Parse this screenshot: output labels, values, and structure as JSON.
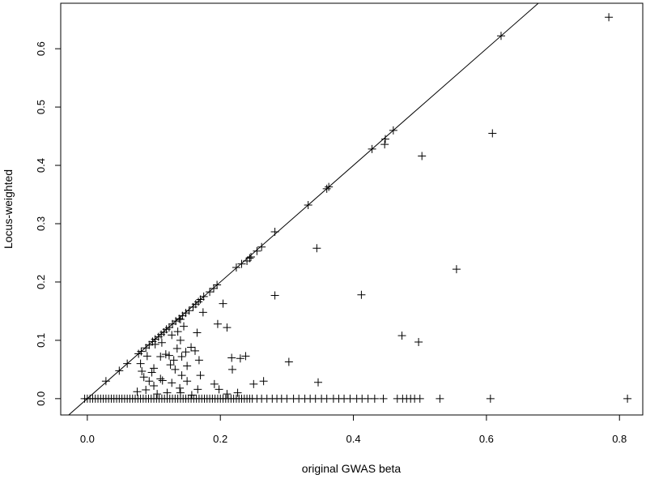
{
  "chart_data": {
    "type": "scatter",
    "marker": "plus",
    "xlabel": "original GWAS beta",
    "ylabel": "Locus-weighted",
    "xlim": [
      -0.04,
      0.835
    ],
    "ylim": [
      -0.028,
      0.678
    ],
    "x_ticks": [
      0.0,
      0.2,
      0.4,
      0.6,
      0.8
    ],
    "x_tick_labels": [
      "0.0",
      "0.2",
      "0.4",
      "0.6",
      "0.8"
    ],
    "y_ticks": [
      0.0,
      0.1,
      0.2,
      0.3,
      0.4,
      0.5,
      0.6
    ],
    "y_tick_labels": [
      "0.0",
      "0.1",
      "0.2",
      "0.3",
      "0.4",
      "0.5",
      "0.6"
    ],
    "grid": false,
    "reference_line": {
      "type": "identity",
      "slope": 1,
      "intercept": 0
    },
    "series": [
      {
        "points": [
          [
            0.784,
            0.654
          ],
          [
            0.622,
            0.622
          ],
          [
            0.609,
            0.455
          ],
          [
            0.46,
            0.46
          ],
          [
            0.448,
            0.445
          ],
          [
            0.447,
            0.436
          ],
          [
            0.428,
            0.428
          ],
          [
            0.503,
            0.416
          ],
          [
            0.363,
            0.363
          ],
          [
            0.36,
            0.36
          ],
          [
            0.332,
            0.332
          ],
          [
            0.282,
            0.286
          ],
          [
            0.345,
            0.258
          ],
          [
            0.262,
            0.26
          ],
          [
            0.255,
            0.253
          ],
          [
            0.246,
            0.243
          ],
          [
            0.244,
            0.241
          ],
          [
            0.24,
            0.236
          ],
          [
            0.232,
            0.231
          ],
          [
            0.224,
            0.225
          ],
          [
            0.555,
            0.222
          ],
          [
            0.195,
            0.195
          ],
          [
            0.19,
            0.189
          ],
          [
            0.184,
            0.183
          ],
          [
            0.175,
            0.175
          ],
          [
            0.17,
            0.17
          ],
          [
            0.167,
            0.166
          ],
          [
            0.163,
            0.162
          ],
          [
            0.159,
            0.157
          ],
          [
            0.153,
            0.151
          ],
          [
            0.148,
            0.147
          ],
          [
            0.143,
            0.142
          ],
          [
            0.138,
            0.137
          ],
          [
            0.133,
            0.133
          ],
          [
            0.128,
            0.128
          ],
          [
            0.123,
            0.122
          ],
          [
            0.119,
            0.119
          ],
          [
            0.115,
            0.114
          ],
          [
            0.111,
            0.11
          ],
          [
            0.107,
            0.106
          ],
          [
            0.102,
            0.102
          ],
          [
            0.098,
            0.098
          ],
          [
            0.093,
            0.092
          ],
          [
            0.088,
            0.087
          ],
          [
            0.081,
            0.081
          ],
          [
            0.077,
            0.077
          ],
          [
            0.06,
            0.06
          ],
          [
            0.048,
            0.048
          ],
          [
            0.028,
            0.03
          ],
          [
            0.204,
            0.163
          ],
          [
            0.282,
            0.177
          ],
          [
            0.412,
            0.178
          ],
          [
            0.174,
            0.148
          ],
          [
            0.196,
            0.128
          ],
          [
            0.21,
            0.122
          ],
          [
            0.14,
            0.136
          ],
          [
            0.145,
            0.124
          ],
          [
            0.136,
            0.115
          ],
          [
            0.165,
            0.113
          ],
          [
            0.127,
            0.109
          ],
          [
            0.473,
            0.108
          ],
          [
            0.14,
            0.1
          ],
          [
            0.498,
            0.097
          ],
          [
            0.112,
            0.096
          ],
          [
            0.102,
            0.093
          ],
          [
            0.156,
            0.088
          ],
          [
            0.135,
            0.086
          ],
          [
            0.148,
            0.08
          ],
          [
            0.162,
            0.082
          ],
          [
            0.118,
            0.076
          ],
          [
            0.123,
            0.074
          ],
          [
            0.09,
            0.073
          ],
          [
            0.142,
            0.072
          ],
          [
            0.11,
            0.072
          ],
          [
            0.217,
            0.07
          ],
          [
            0.23,
            0.069
          ],
          [
            0.238,
            0.073
          ],
          [
            0.13,
            0.066
          ],
          [
            0.168,
            0.066
          ],
          [
            0.08,
            0.06
          ],
          [
            0.303,
            0.063
          ],
          [
            0.125,
            0.058
          ],
          [
            0.15,
            0.056
          ],
          [
            0.1,
            0.052
          ],
          [
            0.132,
            0.05
          ],
          [
            0.218,
            0.05
          ],
          [
            0.082,
            0.047
          ],
          [
            0.097,
            0.045
          ],
          [
            0.142,
            0.04
          ],
          [
            0.17,
            0.04
          ],
          [
            0.085,
            0.037
          ],
          [
            0.11,
            0.034
          ],
          [
            0.113,
            0.031
          ],
          [
            0.093,
            0.03
          ],
          [
            0.127,
            0.027
          ],
          [
            0.15,
            0.03
          ],
          [
            0.191,
            0.025
          ],
          [
            0.25,
            0.025
          ],
          [
            0.265,
            0.03
          ],
          [
            0.347,
            0.028
          ],
          [
            0.1,
            0.022
          ],
          [
            0.139,
            0.018
          ],
          [
            0.166,
            0.016
          ],
          [
            0.088,
            0.015
          ],
          [
            0.075,
            0.012
          ],
          [
            0.105,
            0.008
          ],
          [
            0.12,
            0.01
          ],
          [
            0.14,
            0.01
          ],
          [
            0.21,
            0.008
          ],
          [
            0.226,
            0.01
          ],
          [
            0.198,
            0.016
          ],
          [
            0.157,
            0.006
          ]
        ],
        "zero_x": [
          -0.004,
          0.0,
          0.004,
          0.008,
          0.012,
          0.016,
          0.02,
          0.024,
          0.028,
          0.032,
          0.036,
          0.04,
          0.044,
          0.048,
          0.052,
          0.056,
          0.06,
          0.064,
          0.068,
          0.072,
          0.076,
          0.08,
          0.084,
          0.088,
          0.092,
          0.096,
          0.1,
          0.104,
          0.108,
          0.112,
          0.116,
          0.12,
          0.124,
          0.128,
          0.132,
          0.136,
          0.14,
          0.144,
          0.148,
          0.152,
          0.156,
          0.16,
          0.164,
          0.168,
          0.172,
          0.176,
          0.18,
          0.184,
          0.188,
          0.192,
          0.196,
          0.2,
          0.204,
          0.208,
          0.212,
          0.216,
          0.22,
          0.224,
          0.228,
          0.232,
          0.236,
          0.24,
          0.244,
          0.248,
          0.255,
          0.262,
          0.27,
          0.278,
          0.285,
          0.292,
          0.3,
          0.31,
          0.318,
          0.327,
          0.335,
          0.343,
          0.352,
          0.36,
          0.37,
          0.378,
          0.386,
          0.395,
          0.405,
          0.413,
          0.422,
          0.432,
          0.445,
          0.466,
          0.474,
          0.48,
          0.486,
          0.492,
          0.5,
          0.53,
          0.606,
          0.812
        ]
      }
    ]
  }
}
